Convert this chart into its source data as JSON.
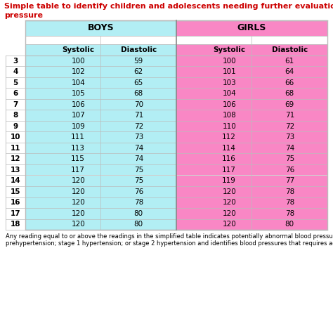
{
  "title_line1": "Simple table to identify children and adolescents needing further evaluation of blood",
  "title_line2": "pressure",
  "title_color": "#cc0000",
  "boys_header": "BOYS",
  "girls_header": "GIRLS",
  "col_headers": [
    "Systolic",
    "Diastolic",
    "Systolic",
    "Diastolic"
  ],
  "ages": [
    3,
    4,
    5,
    6,
    7,
    8,
    9,
    10,
    11,
    12,
    13,
    14,
    15,
    16,
    17,
    18
  ],
  "boys_systolic": [
    100,
    102,
    104,
    105,
    106,
    107,
    109,
    111,
    113,
    115,
    117,
    120,
    120,
    120,
    120,
    120
  ],
  "boys_diastolic": [
    59,
    62,
    65,
    68,
    70,
    71,
    72,
    73,
    74,
    74,
    75,
    75,
    76,
    78,
    80,
    80
  ],
  "girls_systolic": [
    100,
    101,
    103,
    104,
    106,
    108,
    110,
    112,
    114,
    116,
    117,
    119,
    120,
    120,
    120,
    120
  ],
  "girls_diastolic": [
    61,
    64,
    66,
    68,
    69,
    71,
    72,
    73,
    74,
    75,
    76,
    77,
    78,
    78,
    78,
    80
  ],
  "boys_bg": "#b2eef4",
  "girls_bg": "#f987c5",
  "border_color": "#bbbbbb",
  "mid_border_color": "#888888",
  "footnote_line1": "Any reading equal to or above the readings in the simplified table indicates potentially abnormal blood pressures in one of three ranges:",
  "footnote_line2": "prehypertension; stage 1 hypertension; or stage 2 hypertension and identifies blood pressures that requires additional evaluation.",
  "footnote_fontsize": 6.0,
  "title_fontsize": 8.0,
  "header_fontsize": 9.0,
  "col_header_fontsize": 7.5,
  "data_fontsize": 7.5,
  "age_fontsize": 7.5
}
